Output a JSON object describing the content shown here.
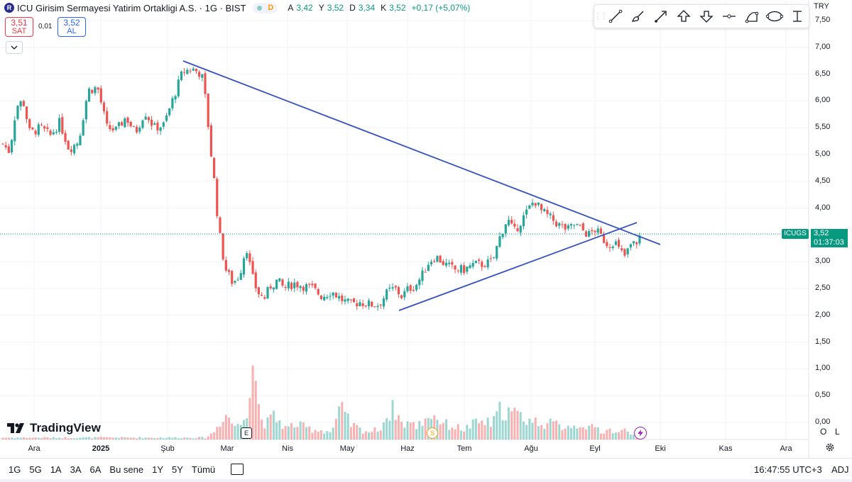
{
  "header": {
    "logo_letter": "R",
    "title": "ICU Girisim Sermayesi Yatirim Ortakligi A.S. · 1G · BIST",
    "market_status": "D",
    "ohlc": [
      {
        "label": "A",
        "value": "3,42"
      },
      {
        "label": "Y",
        "value": "3,52"
      },
      {
        "label": "D",
        "value": "3,34"
      },
      {
        "label": "K",
        "value": "3,52"
      }
    ],
    "change": "+0,17 (+5,07%)"
  },
  "trade": {
    "sell_price": "3,51",
    "sell_label": "SAT",
    "spread": "0,01",
    "buy_price": "3,52",
    "buy_label": "AL"
  },
  "collapse_icon": "chevron-down-icon",
  "toolbar": {
    "tools": [
      "trend-line-icon",
      "brush-icon",
      "arrow-line-icon",
      "arrow-up-icon",
      "arrow-down-icon",
      "price-level-icon",
      "curve-icon",
      "ellipse-icon",
      "date-range-icon"
    ]
  },
  "currency": "TRY",
  "price_axis": [
    "7,50",
    "7,00",
    "6,50",
    "6,00",
    "5,50",
    "5,00",
    "4,50",
    "4,00",
    "3,50",
    "3,00",
    "2,50",
    "2,00",
    "1,50",
    "1,00",
    "0,50",
    "0,00"
  ],
  "time_axis": [
    {
      "label": "Ara",
      "bold": false
    },
    {
      "label": "2025",
      "bold": true
    },
    {
      "label": "Şub",
      "bold": false
    },
    {
      "label": "Mar",
      "bold": false
    },
    {
      "label": "Nis",
      "bold": false
    },
    {
      "label": "May",
      "bold": false
    },
    {
      "label": "Haz",
      "bold": false
    },
    {
      "label": "Tem",
      "bold": false
    },
    {
      "label": "Ağu",
      "bold": false
    },
    {
      "label": "Eyl",
      "bold": false
    },
    {
      "label": "Eki",
      "bold": false
    },
    {
      "label": "Kas",
      "bold": false
    },
    {
      "label": "Ara",
      "bold": false
    }
  ],
  "last_price": {
    "symbol": "ICUGS",
    "price": "3,52",
    "countdown": "01:37:03",
    "value": 3.52
  },
  "branding": {
    "name": "TradingView"
  },
  "events": {
    "earnings": "E",
    "split": "S"
  },
  "scale_buttons": {
    "log": "O",
    "linear": "L"
  },
  "bottom_bar": {
    "ranges": [
      "1G",
      "5G",
      "1A",
      "3A",
      "6A",
      "Bu sene",
      "1Y",
      "5Y",
      "Tümü"
    ],
    "time": "16:47:55 UTC+3",
    "adj": "ADJ"
  },
  "colors": {
    "up": "#26a69a",
    "down": "#ef5350",
    "trend": "#3451c1",
    "last": "#089981"
  },
  "chart_data": {
    "type": "candlestick",
    "price_range": [
      0,
      7.5
    ],
    "grid": true,
    "trendlines": [
      {
        "name": "descending",
        "from": {
          "date": "2025-02-12",
          "price": 6.75
        },
        "to": {
          "date": "2025-09-26",
          "price": 3.32
        }
      },
      {
        "name": "ascending",
        "from": {
          "date": "2025-06-03",
          "price": 2.07
        },
        "to": {
          "date": "2025-09-16",
          "price": 3.72
        }
      }
    ],
    "price_series": [
      [
        0,
        5.2
      ],
      [
        5,
        5.05
      ],
      [
        10,
        5.9
      ],
      [
        15,
        6.0
      ],
      [
        20,
        5.4
      ],
      [
        28,
        5.5
      ],
      [
        35,
        5.35
      ],
      [
        42,
        5.6
      ],
      [
        49,
        5.1
      ],
      [
        56,
        5.25
      ],
      [
        63,
        6.2
      ],
      [
        70,
        6.25
      ],
      [
        77,
        5.5
      ],
      [
        84,
        5.45
      ],
      [
        91,
        5.7
      ],
      [
        98,
        5.4
      ],
      [
        105,
        5.8
      ],
      [
        112,
        5.5
      ],
      [
        119,
        5.55
      ],
      [
        126,
        6.05
      ],
      [
        133,
        6.55
      ],
      [
        140,
        6.6
      ],
      [
        147,
        6.5
      ],
      [
        150,
        6.0
      ],
      [
        154,
        5.0
      ],
      [
        157,
        4.35
      ],
      [
        159,
        3.75
      ],
      [
        162,
        3.2
      ],
      [
        165,
        2.85
      ],
      [
        170,
        2.6
      ],
      [
        175,
        2.75
      ],
      [
        180,
        3.3
      ],
      [
        184,
        2.75
      ],
      [
        188,
        2.45
      ],
      [
        193,
        2.3
      ],
      [
        198,
        2.55
      ],
      [
        203,
        2.65
      ],
      [
        208,
        2.5
      ],
      [
        215,
        2.6
      ],
      [
        222,
        2.55
      ],
      [
        229,
        2.5
      ],
      [
        236,
        2.35
      ],
      [
        243,
        2.45
      ],
      [
        250,
        2.3
      ],
      [
        257,
        2.2
      ],
      [
        264,
        2.25
      ],
      [
        271,
        2.2
      ],
      [
        278,
        2.2
      ],
      [
        285,
        2.45
      ],
      [
        290,
        2.5
      ],
      [
        295,
        2.35
      ],
      [
        300,
        2.5
      ],
      [
        305,
        2.55
      ],
      [
        310,
        2.75
      ],
      [
        315,
        3.0
      ],
      [
        320,
        3.1
      ],
      [
        327,
        2.95
      ],
      [
        334,
        2.85
      ],
      [
        341,
        2.85
      ],
      [
        348,
        2.95
      ],
      [
        355,
        2.95
      ],
      [
        362,
        3.0
      ],
      [
        368,
        3.5
      ],
      [
        373,
        3.8
      ],
      [
        378,
        3.55
      ],
      [
        383,
        3.75
      ],
      [
        388,
        3.95
      ],
      [
        393,
        4.15
      ],
      [
        398,
        3.95
      ],
      [
        403,
        3.85
      ],
      [
        408,
        3.75
      ],
      [
        413,
        3.65
      ],
      [
        418,
        3.6
      ],
      [
        423,
        3.7
      ],
      [
        428,
        3.6
      ],
      [
        433,
        3.5
      ],
      [
        438,
        3.6
      ],
      [
        443,
        3.45
      ],
      [
        448,
        3.3
      ],
      [
        452,
        3.4
      ],
      [
        456,
        3.2
      ],
      [
        460,
        3.1
      ],
      [
        464,
        3.3
      ],
      [
        468,
        3.35
      ],
      [
        472,
        3.52
      ]
    ],
    "volume_series": [
      [
        150,
        0.04
      ],
      [
        155,
        0.12
      ],
      [
        160,
        0.3
      ],
      [
        163,
        0.5
      ],
      [
        167,
        0.45
      ],
      [
        170,
        0.3
      ],
      [
        175,
        0.25
      ],
      [
        180,
        0.55
      ],
      [
        185,
        1.75
      ],
      [
        190,
        0.45
      ],
      [
        195,
        0.3
      ],
      [
        200,
        0.45
      ],
      [
        205,
        0.35
      ],
      [
        210,
        0.2
      ],
      [
        215,
        0.3
      ],
      [
        222,
        0.25
      ],
      [
        229,
        0.2
      ],
      [
        236,
        0.18
      ],
      [
        243,
        0.15
      ],
      [
        250,
        0.6
      ],
      [
        257,
        0.3
      ],
      [
        264,
        0.2
      ],
      [
        271,
        0.15
      ],
      [
        278,
        0.2
      ],
      [
        285,
        0.5
      ],
      [
        290,
        0.62
      ],
      [
        295,
        0.3
      ],
      [
        300,
        0.35
      ],
      [
        305,
        0.25
      ],
      [
        310,
        0.35
      ],
      [
        315,
        0.5
      ],
      [
        320,
        0.45
      ],
      [
        327,
        0.3
      ],
      [
        334,
        0.25
      ],
      [
        341,
        0.2
      ],
      [
        348,
        0.3
      ],
      [
        355,
        0.35
      ],
      [
        362,
        0.3
      ],
      [
        368,
        0.6
      ],
      [
        373,
        0.55
      ],
      [
        378,
        0.5
      ],
      [
        383,
        0.45
      ],
      [
        388,
        0.4
      ],
      [
        393,
        0.35
      ],
      [
        398,
        0.35
      ],
      [
        403,
        0.3
      ],
      [
        408,
        0.3
      ],
      [
        413,
        0.25
      ],
      [
        418,
        0.3
      ],
      [
        423,
        0.25
      ],
      [
        428,
        0.35
      ],
      [
        433,
        0.2
      ],
      [
        438,
        0.25
      ],
      [
        443,
        0.15
      ],
      [
        448,
        0.2
      ],
      [
        452,
        0.15
      ],
      [
        456,
        0.12
      ],
      [
        460,
        0.2
      ],
      [
        464,
        0.15
      ],
      [
        468,
        0.12
      ],
      [
        472,
        0.1
      ]
    ]
  }
}
